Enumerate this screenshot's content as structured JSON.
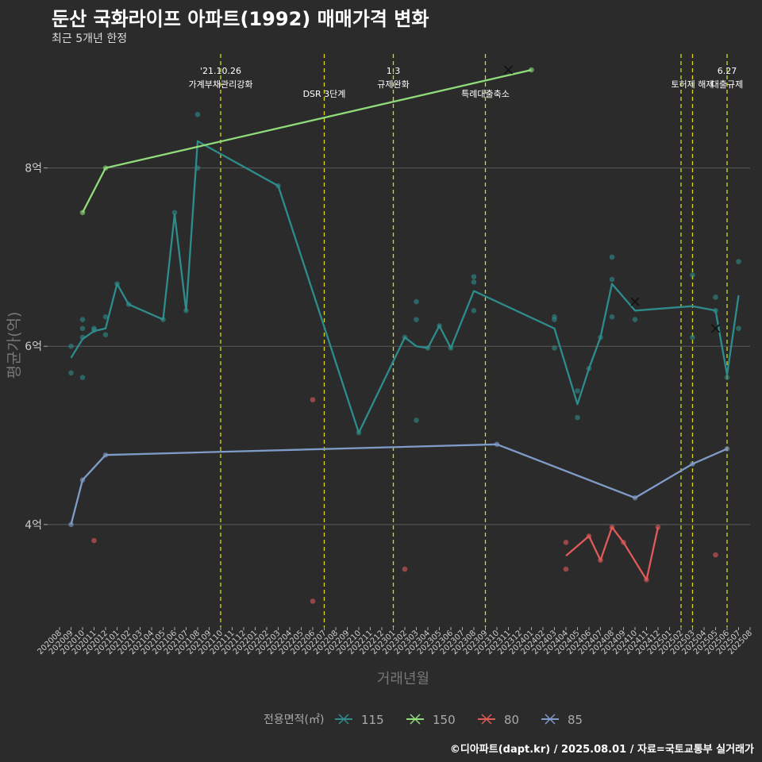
{
  "header": {
    "title": "둔산 국화라이프 아파트(1992) 매매가격 변화",
    "subtitle": "최근 5개년 한정"
  },
  "caption": "©디아파트(dapt.kr) / 2025.08.01 / 자료=국토교통부 실거래가",
  "colors": {
    "background": "#2b2b2b",
    "grid": "#5a5a5a",
    "event_line": "#d9d91a",
    "s115": "#2e8c8c",
    "s150": "#90dc7a",
    "s80": "#e05a5a",
    "s85": "#7f9cc8"
  },
  "chart_data": {
    "type": "line",
    "xlabel": "거래년월",
    "ylabel": "평균가(억)",
    "ylim": [
      2.85,
      9.35
    ],
    "y_ticks": [
      {
        "v": 4,
        "label": "4억"
      },
      {
        "v": 6,
        "label": "6억"
      },
      {
        "v": 8,
        "label": "8억"
      }
    ],
    "grid": true,
    "legend_position": "bottom",
    "legend_title": "전용면적(㎡)",
    "x_ticks": [
      "202008",
      "202009",
      "202010",
      "202011",
      "202012",
      "202101",
      "202102",
      "202103",
      "202104",
      "202105",
      "202106",
      "202107",
      "202108",
      "202109",
      "202110",
      "202111",
      "202112",
      "202201",
      "202202",
      "202203",
      "202204",
      "202205",
      "202206",
      "202207",
      "202208",
      "202209",
      "202210",
      "202211",
      "202212",
      "202301",
      "202302",
      "202303",
      "202304",
      "202305",
      "202306",
      "202307",
      "202308",
      "202309",
      "202310",
      "202311",
      "202312",
      "202401",
      "202402",
      "202403",
      "202404",
      "202405",
      "202406",
      "202407",
      "202408",
      "202409",
      "202410",
      "202411",
      "202412",
      "202501",
      "202502",
      "202503",
      "202504",
      "202505",
      "202506",
      "202507",
      "202508"
    ],
    "events": [
      {
        "x": "202110",
        "lines": [
          "'21.10.26",
          "가계부채관리강화"
        ],
        "level": 0
      },
      {
        "x": "202207",
        "lines": [
          "DSR 3단계"
        ],
        "level": 1
      },
      {
        "x": "202301",
        "lines": [
          "1.3",
          "규제완화"
        ],
        "level": 0
      },
      {
        "x": "202309",
        "lines": [
          "특례대출축소"
        ],
        "level": 1
      },
      {
        "x": "202502",
        "lines": [],
        "level": 0
      },
      {
        "x": "202503",
        "lines": [
          "토허제 해제"
        ],
        "level": 0
      },
      {
        "x": "202506",
        "lines": [
          "6.27",
          "대출규제"
        ],
        "level": 0
      }
    ],
    "series": [
      {
        "name": "115",
        "color": "#2e8c8c",
        "line": [
          [
            "202009",
            5.87
          ],
          [
            "202010",
            6.08
          ],
          [
            "202011",
            6.17
          ],
          [
            "202012",
            6.2
          ],
          [
            "202101",
            6.7
          ],
          [
            "202102",
            6.47
          ],
          [
            "202105",
            6.3
          ],
          [
            "202106",
            7.48
          ],
          [
            "202107",
            6.4
          ],
          [
            "202108",
            8.3
          ],
          [
            "202203",
            7.8
          ],
          [
            "202210",
            5.03
          ],
          [
            "202302",
            6.1
          ],
          [
            "202303",
            6.0
          ],
          [
            "202304",
            5.98
          ],
          [
            "202305",
            6.23
          ],
          [
            "202306",
            5.98
          ],
          [
            "202308",
            6.62
          ],
          [
            "202403",
            6.2
          ],
          [
            "202405",
            5.35
          ],
          [
            "202406",
            5.75
          ],
          [
            "202407",
            6.1
          ],
          [
            "202408",
            6.7
          ],
          [
            "202410",
            6.4
          ],
          [
            "202503",
            6.45
          ],
          [
            "202505",
            6.4
          ],
          [
            "202506",
            5.68
          ],
          [
            "202507",
            6.57
          ]
        ],
        "points": [
          [
            "202009",
            6.0
          ],
          [
            "202009",
            5.7
          ],
          [
            "202010",
            6.3
          ],
          [
            "202010",
            6.2
          ],
          [
            "202010",
            6.1
          ],
          [
            "202010",
            5.65
          ],
          [
            "202011",
            6.2
          ],
          [
            "202011",
            6.18
          ],
          [
            "202012",
            6.33
          ],
          [
            "202012",
            6.13
          ],
          [
            "202101",
            6.7
          ],
          [
            "202102",
            6.47
          ],
          [
            "202105",
            6.3
          ],
          [
            "202106",
            7.5
          ],
          [
            "202107",
            6.4
          ],
          [
            "202108",
            8.6
          ],
          [
            "202108",
            8.0
          ],
          [
            "202203",
            7.8
          ],
          [
            "202210",
            5.03
          ],
          [
            "202302",
            6.1
          ],
          [
            "202303",
            6.5
          ],
          [
            "202303",
            6.3
          ],
          [
            "202303",
            5.17
          ],
          [
            "202304",
            5.98
          ],
          [
            "202305",
            6.23
          ],
          [
            "202306",
            5.98
          ],
          [
            "202308",
            6.78
          ],
          [
            "202308",
            6.72
          ],
          [
            "202308",
            6.4
          ],
          [
            "202403",
            6.33
          ],
          [
            "202403",
            6.3
          ],
          [
            "202403",
            5.98
          ],
          [
            "202405",
            5.5
          ],
          [
            "202405",
            5.2
          ],
          [
            "202406",
            5.75
          ],
          [
            "202407",
            6.1
          ],
          [
            "202408",
            7.0
          ],
          [
            "202408",
            6.75
          ],
          [
            "202408",
            6.33
          ],
          [
            "202410",
            6.3
          ],
          [
            "202503",
            6.8
          ],
          [
            "202503",
            6.1
          ],
          [
            "202505",
            6.55
          ],
          [
            "202505",
            6.4
          ],
          [
            "202506",
            5.65
          ],
          [
            "202507",
            6.95
          ],
          [
            "202507",
            6.2
          ]
        ],
        "markers_x": [
          [
            "202410",
            6.5
          ],
          [
            "202505",
            6.2
          ]
        ]
      },
      {
        "name": "150",
        "color": "#90dc7a",
        "line": [
          [
            "202010",
            7.5
          ],
          [
            "202012",
            8.0
          ],
          [
            "202401",
            9.1
          ]
        ],
        "points": [
          [
            "202010",
            7.5
          ],
          [
            "202012",
            8.0
          ],
          [
            "202401",
            9.1
          ]
        ],
        "markers_x": [
          [
            "202311",
            9.1
          ]
        ]
      },
      {
        "name": "80",
        "color": "#e05a5a",
        "line": [
          [
            "202404",
            3.65
          ],
          [
            "202406",
            3.87
          ],
          [
            "202407",
            3.6
          ],
          [
            "202408",
            3.97
          ],
          [
            "202409",
            3.8
          ],
          [
            "202411",
            3.38
          ],
          [
            "202412",
            3.97
          ]
        ],
        "points": [
          [
            "202011",
            3.82
          ],
          [
            "202206",
            5.4
          ],
          [
            "202206",
            3.14
          ],
          [
            "202302",
            3.5
          ],
          [
            "202404",
            3.8
          ],
          [
            "202404",
            3.5
          ],
          [
            "202406",
            3.87
          ],
          [
            "202407",
            3.6
          ],
          [
            "202408",
            3.97
          ],
          [
            "202409",
            3.8
          ],
          [
            "202411",
            3.38
          ],
          [
            "202412",
            3.97
          ],
          [
            "202505",
            3.66
          ]
        ],
        "markers_x": []
      },
      {
        "name": "85",
        "color": "#7f9cc8",
        "line": [
          [
            "202009",
            4.0
          ],
          [
            "202010",
            4.5
          ],
          [
            "202012",
            4.78
          ],
          [
            "202310",
            4.9
          ],
          [
            "202410",
            4.3
          ],
          [
            "202503",
            4.68
          ],
          [
            "202506",
            4.85
          ]
        ],
        "points": [
          [
            "202009",
            4.0
          ],
          [
            "202010",
            4.5
          ],
          [
            "202012",
            4.78
          ],
          [
            "202310",
            4.9
          ],
          [
            "202410",
            4.3
          ],
          [
            "202503",
            4.68
          ],
          [
            "202506",
            4.85
          ]
        ],
        "markers_x": []
      }
    ]
  }
}
